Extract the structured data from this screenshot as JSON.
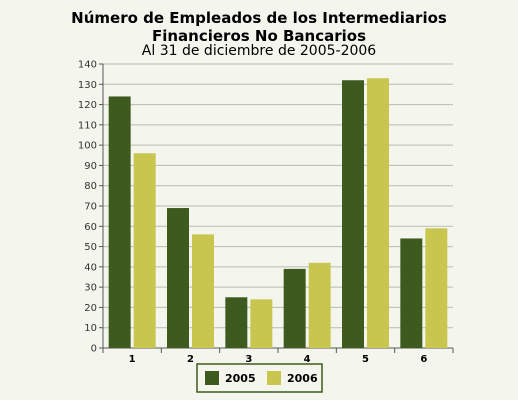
{
  "chart_data": {
    "type": "bar",
    "title_line1": "Número de Empleados de los Intermediarios",
    "title_line2": "Financieros No Bancarios",
    "subtitle": "Al 31 de diciembre de 2005-2006",
    "xlabel": "",
    "ylabel": "",
    "categories": [
      "1",
      "2",
      "3",
      "4",
      "5",
      "6"
    ],
    "series": [
      {
        "name": "2005",
        "color": "#3f5a1f",
        "values": [
          124,
          69,
          25,
          39,
          132,
          54
        ]
      },
      {
        "name": "2006",
        "color": "#c9c650",
        "values": [
          96,
          56,
          24,
          42,
          133,
          59
        ]
      }
    ],
    "ylim": [
      0,
      140
    ],
    "yticks": [
      0,
      10,
      20,
      30,
      40,
      50,
      60,
      70,
      80,
      90,
      100,
      110,
      120,
      130,
      140
    ],
    "grid": true,
    "legend_position": "bottom"
  }
}
